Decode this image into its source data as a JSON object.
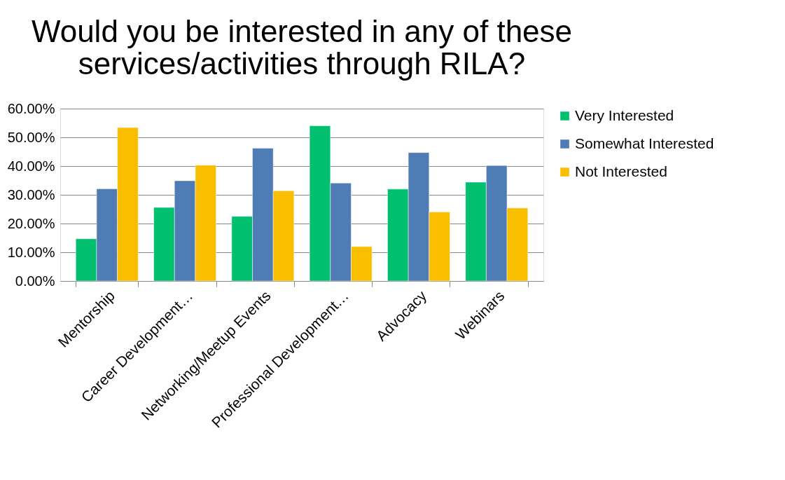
{
  "chart_data": {
    "type": "bar",
    "title": [
      "Would you be interested in any of these",
      "services/activities through RILA?"
    ],
    "categories": [
      "Mentorship",
      "Career Development…",
      "Networking/Meetup Events",
      "Professional Development…",
      "Advocacy",
      "Webinars"
    ],
    "series": [
      {
        "name": "Very Interested",
        "color": "#00bf6f",
        "values": [
          14.7,
          25.6,
          22.5,
          54.0,
          32.0,
          34.4
        ]
      },
      {
        "name": "Somewhat Interested",
        "color": "#507cb6",
        "values": [
          32.1,
          34.9,
          46.2,
          34.1,
          44.7,
          40.2
        ]
      },
      {
        "name": "Not Interested",
        "color": "#f9be00",
        "values": [
          53.4,
          40.3,
          31.4,
          12.0,
          24.0,
          25.4
        ]
      }
    ],
    "ylim": [
      0,
      60
    ],
    "yticks": [
      {
        "value": 0,
        "label": "0.00%"
      },
      {
        "value": 10,
        "label": "10.00%"
      },
      {
        "value": 20,
        "label": "20.00%"
      },
      {
        "value": 30,
        "label": "30.00%"
      },
      {
        "value": 40,
        "label": "40.00%"
      },
      {
        "value": 50,
        "label": "50.00%"
      },
      {
        "value": 60,
        "label": "60.00%"
      }
    ],
    "grid": "y",
    "legend": "right"
  }
}
